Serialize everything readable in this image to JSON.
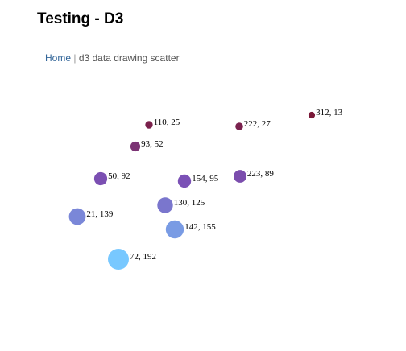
{
  "page": {
    "title": "Testing - D3"
  },
  "breadcrumb": {
    "home_label": "Home",
    "separator": "|",
    "current_label": "d3 data drawing scatter"
  },
  "chart_data": {
    "type": "scatter",
    "points": [
      {
        "x": 110,
        "y": 25,
        "label": "110, 25"
      },
      {
        "x": 222,
        "y": 27,
        "label": "222, 27"
      },
      {
        "x": 312,
        "y": 13,
        "label": "312, 13"
      },
      {
        "x": 93,
        "y": 52,
        "label": "93, 52"
      },
      {
        "x": 50,
        "y": 92,
        "label": "50, 92"
      },
      {
        "x": 154,
        "y": 95,
        "label": "154, 95"
      },
      {
        "x": 223,
        "y": 89,
        "label": "223, 89"
      },
      {
        "x": 130,
        "y": 125,
        "label": "130, 125"
      },
      {
        "x": 21,
        "y": 139,
        "label": "21, 139"
      },
      {
        "x": 142,
        "y": 155,
        "label": "142, 155"
      },
      {
        "x": 72,
        "y": 192,
        "label": "72, 192"
      }
    ],
    "color_scale": {
      "low": "#7a0f24",
      "high": "#78c8ff"
    },
    "xlim": [
      0,
      312
    ],
    "ylim": [
      0,
      192
    ],
    "grid": false
  }
}
